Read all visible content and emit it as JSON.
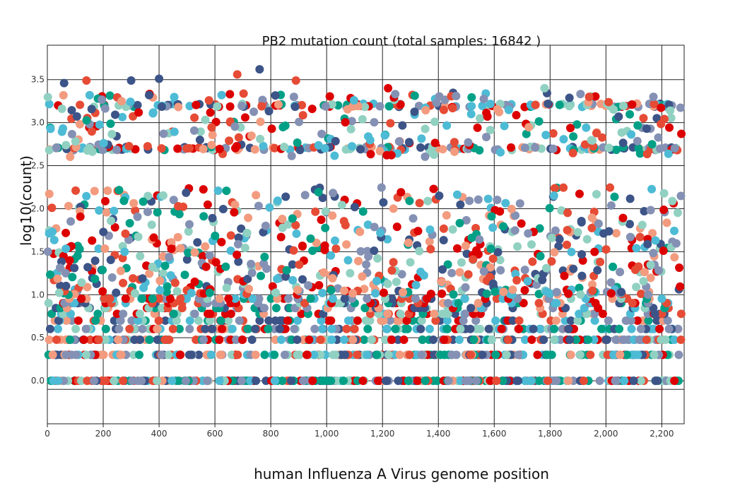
{
  "chart_data": {
    "type": "scatter",
    "title": "PB2 mutation count (total samples: 16842 )",
    "xlabel": "human Influenza A Virus genome position",
    "ylabel": "log10(count)",
    "xlim": [
      0,
      2280
    ],
    "ylim": [
      -0.5,
      3.9
    ],
    "x_ticks": [
      0,
      200,
      400,
      600,
      800,
      1000,
      1200,
      1400,
      1600,
      1800,
      2000,
      2200
    ],
    "x_tick_labels": [
      "0",
      "200",
      "400",
      "600",
      "800",
      "1,000",
      "1,200",
      "1,400",
      "1,600",
      "1,800",
      "2,000",
      "2,200"
    ],
    "y_ticks": [
      0.0,
      0.5,
      1.0,
      1.5,
      2.0,
      2.5,
      3.0,
      3.5
    ],
    "y_tick_labels": [
      "0.0",
      "0.5",
      "1.0",
      "1.5",
      "2.0",
      "2.5",
      "3.0",
      "3.5"
    ],
    "grid": true,
    "colors": [
      "#3c5488",
      "#e64b35",
      "#4dbbd5",
      "#00a087",
      "#f39b7f",
      "#91d1c2",
      "#8491b4",
      "#dc0000"
    ],
    "series_note_colors_only": true,
    "x_bands": [
      {
        "y": 0.0,
        "count": 300
      },
      {
        "y": 0.301,
        "count": 220
      },
      {
        "y": 0.477,
        "count": 170
      },
      {
        "y": 0.602,
        "count": 130
      },
      {
        "y": 0.699,
        "count": 100
      },
      {
        "y": 2.699,
        "count": 160
      },
      {
        "y": 3.2,
        "count": 120
      }
    ],
    "peaks": [
      {
        "x": 60,
        "y": 3.46
      },
      {
        "x": 140,
        "y": 3.49
      },
      {
        "x": 300,
        "y": 3.49
      },
      {
        "x": 400,
        "y": 3.51
      },
      {
        "x": 680,
        "y": 3.56
      },
      {
        "x": 760,
        "y": 3.62
      },
      {
        "x": 890,
        "y": 3.49
      },
      {
        "x": 1220,
        "y": 3.4
      },
      {
        "x": 1780,
        "y": 3.4
      },
      {
        "x": 1940,
        "y": 3.3
      },
      {
        "x": 2170,
        "y": 3.3
      },
      {
        "x": 2270,
        "y": 2.87
      }
    ]
  }
}
